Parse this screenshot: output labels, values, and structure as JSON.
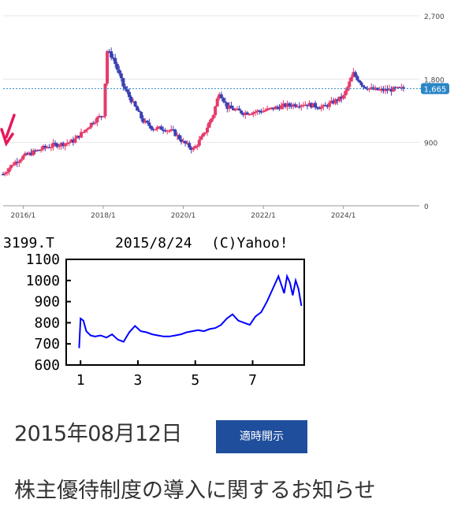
{
  "chart_data": [
    {
      "type": "candlestick",
      "y_ticks": [
        "2,700",
        "1,800",
        "900",
        "0"
      ],
      "x_ticks": [
        "2016/1",
        "2018/1",
        "2020/1",
        "2022/1",
        "2024/1"
      ],
      "current_price_label": "1,665",
      "current_price": 1665,
      "ylim": [
        0,
        2700
      ],
      "xlim": [
        2015.5,
        2025.7
      ],
      "grid": true,
      "colors": {
        "up": "#e63b6b",
        "down": "#3b3fb3",
        "price_line": "#2a86c7",
        "arrow": "#e6195a"
      },
      "series": [
        [
          2015.5,
          450
        ],
        [
          2015.75,
          600
        ],
        [
          2016.0,
          700
        ],
        [
          2016.25,
          760
        ],
        [
          2016.5,
          820
        ],
        [
          2016.75,
          860
        ],
        [
          2017.0,
          880
        ],
        [
          2017.25,
          920
        ],
        [
          2017.5,
          1050
        ],
        [
          2017.75,
          1200
        ],
        [
          2018.0,
          1300
        ],
        [
          2018.1,
          2200
        ],
        [
          2018.25,
          2100
        ],
        [
          2018.5,
          1700
        ],
        [
          2018.75,
          1450
        ],
        [
          2019.0,
          1200
        ],
        [
          2019.25,
          1100
        ],
        [
          2019.5,
          1100
        ],
        [
          2019.75,
          1050
        ],
        [
          2020.0,
          900
        ],
        [
          2020.25,
          800
        ],
        [
          2020.5,
          1000
        ],
        [
          2020.75,
          1300
        ],
        [
          2020.9,
          1620
        ],
        [
          2021.1,
          1400
        ],
        [
          2021.5,
          1320
        ],
        [
          2022.0,
          1350
        ],
        [
          2022.5,
          1420
        ],
        [
          2023.0,
          1450
        ],
        [
          2023.5,
          1400
        ],
        [
          2024.0,
          1550
        ],
        [
          2024.25,
          1880
        ],
        [
          2024.5,
          1700
        ],
        [
          2024.75,
          1650
        ],
        [
          2025.0,
          1640
        ],
        [
          2025.5,
          1665
        ]
      ]
    },
    {
      "type": "line",
      "title_left": "3199.T",
      "title_center": "2015/8/24",
      "title_right": "(C)Yahoo!",
      "y_ticks": [
        "1100",
        "1000",
        "900",
        "800",
        "700",
        "600"
      ],
      "x_ticks": [
        "1",
        "3",
        "5",
        "7"
      ],
      "ylim": [
        600,
        1100
      ],
      "xlim": [
        0.5,
        8.8
      ],
      "color": "#0000ff",
      "x": [
        0.95,
        1.0,
        1.1,
        1.2,
        1.35,
        1.5,
        1.7,
        1.9,
        2.1,
        2.3,
        2.5,
        2.7,
        2.9,
        3.1,
        3.3,
        3.5,
        3.7,
        3.9,
        4.1,
        4.3,
        4.5,
        4.7,
        4.9,
        5.1,
        5.3,
        5.5,
        5.7,
        5.9,
        6.1,
        6.3,
        6.5,
        6.7,
        6.9,
        7.1,
        7.3,
        7.5,
        7.7,
        7.9,
        8.0,
        8.1,
        8.2,
        8.3,
        8.4,
        8.5,
        8.6,
        8.7
      ],
      "y": [
        680,
        820,
        810,
        760,
        740,
        735,
        740,
        730,
        745,
        720,
        710,
        755,
        785,
        760,
        755,
        745,
        740,
        735,
        735,
        740,
        745,
        755,
        760,
        765,
        760,
        770,
        775,
        790,
        820,
        840,
        810,
        800,
        790,
        830,
        850,
        900,
        960,
        1020,
        980,
        940,
        1020,
        990,
        930,
        1000,
        960,
        880
      ]
    }
  ],
  "news": {
    "date": "2015年08月12日",
    "badge": "適時開示",
    "headline": "株主優待制度の導入に関するお知らせ"
  }
}
